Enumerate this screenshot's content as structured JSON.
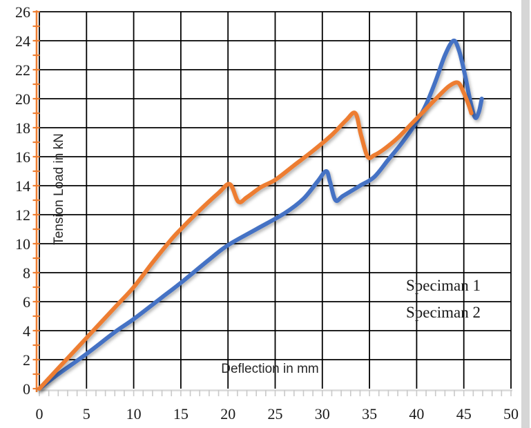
{
  "chart_data": {
    "type": "line",
    "title": "",
    "xlabel": "Deflection in mm",
    "ylabel": "Tension Load in kN",
    "xlim": [
      0,
      50
    ],
    "ylim": [
      0,
      26
    ],
    "x_tick_step": 5,
    "y_tick_step": 2,
    "x_minor_tick_step": 1,
    "y_minor_tick_step": 1,
    "grid": true,
    "gridline_color": "#000000",
    "axis_colors": {
      "y_axis": "#ED7D31",
      "x_axis": "#D9D9D9",
      "x_axis_ticks": "#C9C9C9"
    },
    "legend_position": "inside-right",
    "series": [
      {
        "name": "Speciman 1",
        "color": "#4472C4",
        "points": [
          [
            0,
            0
          ],
          [
            2,
            1.0
          ],
          [
            5,
            2.4
          ],
          [
            8,
            3.9
          ],
          [
            10,
            4.8
          ],
          [
            13,
            6.3
          ],
          [
            15,
            7.3
          ],
          [
            18,
            8.9
          ],
          [
            20,
            9.9
          ],
          [
            23,
            11.0
          ],
          [
            26,
            12.1
          ],
          [
            28,
            13.1
          ],
          [
            29.5,
            14.3
          ],
          [
            30.4,
            15.0
          ],
          [
            30.8,
            14.3
          ],
          [
            31.4,
            13.0
          ],
          [
            32.2,
            13.3
          ],
          [
            34,
            14.0
          ],
          [
            35.5,
            14.6
          ],
          [
            37,
            15.8
          ],
          [
            38.5,
            17.0
          ],
          [
            40,
            18.4
          ],
          [
            41,
            19.6
          ],
          [
            42,
            21.2
          ],
          [
            43,
            23.0
          ],
          [
            43.9,
            24.0
          ],
          [
            44.5,
            23.3
          ],
          [
            45.1,
            21.7
          ],
          [
            45.7,
            19.8
          ],
          [
            46.2,
            18.7
          ],
          [
            46.6,
            19.1
          ],
          [
            46.9,
            20.0
          ]
        ]
      },
      {
        "name": "Speciman 2",
        "color": "#ED7D31",
        "points": [
          [
            0,
            0
          ],
          [
            2,
            1.4
          ],
          [
            5,
            3.5
          ],
          [
            8,
            5.6
          ],
          [
            10,
            7.0
          ],
          [
            12,
            8.7
          ],
          [
            14,
            10.3
          ],
          [
            15,
            11.0
          ],
          [
            17,
            12.3
          ],
          [
            19,
            13.5
          ],
          [
            20.2,
            14.1
          ],
          [
            21.1,
            12.9
          ],
          [
            22,
            13.2
          ],
          [
            23.5,
            13.9
          ],
          [
            25,
            14.4
          ],
          [
            27,
            15.4
          ],
          [
            29,
            16.4
          ],
          [
            31,
            17.5
          ],
          [
            32.5,
            18.5
          ],
          [
            33.5,
            19.0
          ],
          [
            34.1,
            17.5
          ],
          [
            34.8,
            16.0
          ],
          [
            35.5,
            16.1
          ],
          [
            36.5,
            16.5
          ],
          [
            38,
            17.3
          ],
          [
            39.5,
            18.3
          ],
          [
            41,
            19.3
          ],
          [
            42.5,
            20.3
          ],
          [
            43.5,
            20.9
          ],
          [
            44.4,
            21.1
          ],
          [
            45.0,
            20.4
          ],
          [
            45.5,
            19.6
          ],
          [
            45.8,
            19.0
          ]
        ]
      }
    ]
  }
}
